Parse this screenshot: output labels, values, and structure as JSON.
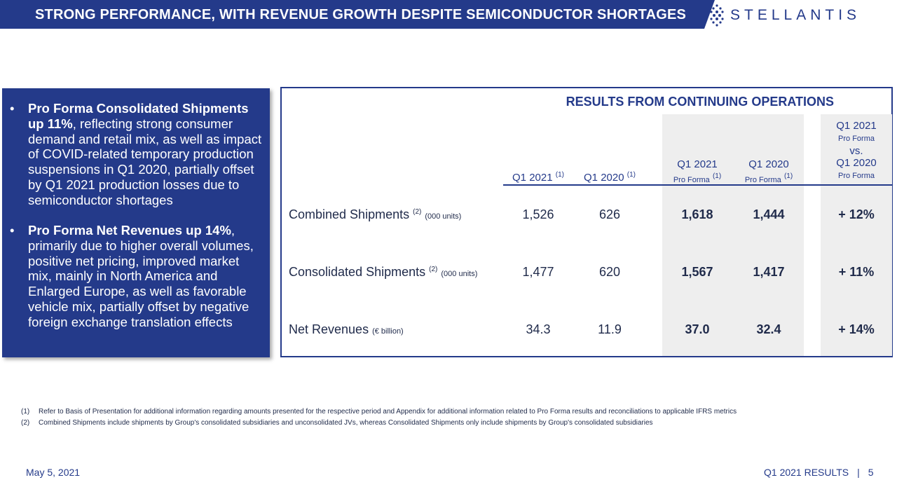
{
  "header": {
    "title": "STRONG PERFORMANCE, WITH REVENUE GROWTH DESPITE SEMICONDUCTOR SHORTAGES",
    "logo_text": "STELLANTIS"
  },
  "colors": {
    "brand": "#243a8a",
    "shade": "#eeeeee"
  },
  "bullets": [
    {
      "bold": "Pro Forma Consolidated Shipments up 11%",
      "rest": ", reflecting strong consumer demand and retail mix, as well as impact of COVID-related temporary production suspensions in Q1 2020, partially offset by Q1 2021 production losses due to semiconductor shortages"
    },
    {
      "bold": "Pro Forma Net Revenues up 14%",
      "rest": ", primarily due to higher overall volumes, positive net pricing, improved market mix, mainly in North America and Enlarged Europe, as well as favorable vehicle mix, partially offset by negative foreign exchange translation effects"
    }
  ],
  "table": {
    "title": "RESULTS FROM CONTINUING OPERATIONS",
    "columns": {
      "c1": {
        "label": "Q1 2021",
        "sup": "(1)"
      },
      "c2": {
        "label": "Q1 2020",
        "sup": "(1)"
      },
      "c3": {
        "label": "Q1 2021",
        "sub": "Pro Forma",
        "sup": "(1)"
      },
      "c4": {
        "label": "Q1 2020",
        "sub": "Pro Forma",
        "sup": "(1)"
      },
      "c5": {
        "line1": "Q1 2021",
        "line2": "Pro Forma",
        "line3": "vs.",
        "line4": "Q1 2020",
        "line5": "Pro Forma"
      }
    },
    "rows": [
      {
        "label": "Combined Shipments",
        "sup": "(2)",
        "unit": "(000 units)",
        "v1": "1,526",
        "v2": "626",
        "v3": "1,618",
        "v4": "1,444",
        "v5": "+ 12%"
      },
      {
        "label": "Consolidated Shipments",
        "sup": "(2)",
        "unit": "(000 units)",
        "v1": "1,477",
        "v2": "620",
        "v3": "1,567",
        "v4": "1,417",
        "v5": "+ 11%"
      },
      {
        "label": "Net Revenues",
        "sup": "",
        "unit": "(€ billion)",
        "v1": "34.3",
        "v2": "11.9",
        "v3": "37.0",
        "v4": "32.4",
        "v5": "+ 14%"
      }
    ]
  },
  "notes": [
    {
      "num": "(1)",
      "text": "Refer to Basis of Presentation for additional information regarding amounts presented for the respective period and Appendix for additional information related to Pro Forma results and reconciliations to applicable IFRS metrics"
    },
    {
      "num": "(2)",
      "text": "Combined Shipments include shipments by Group's consolidated subsidiaries and unconsolidated JVs, whereas Consolidated Shipments only include shipments by Group's consolidated subsidiaries"
    }
  ],
  "footer": {
    "date": "May 5, 2021",
    "section": "Q1 2021 RESULTS",
    "separator": "|",
    "page": "5"
  }
}
